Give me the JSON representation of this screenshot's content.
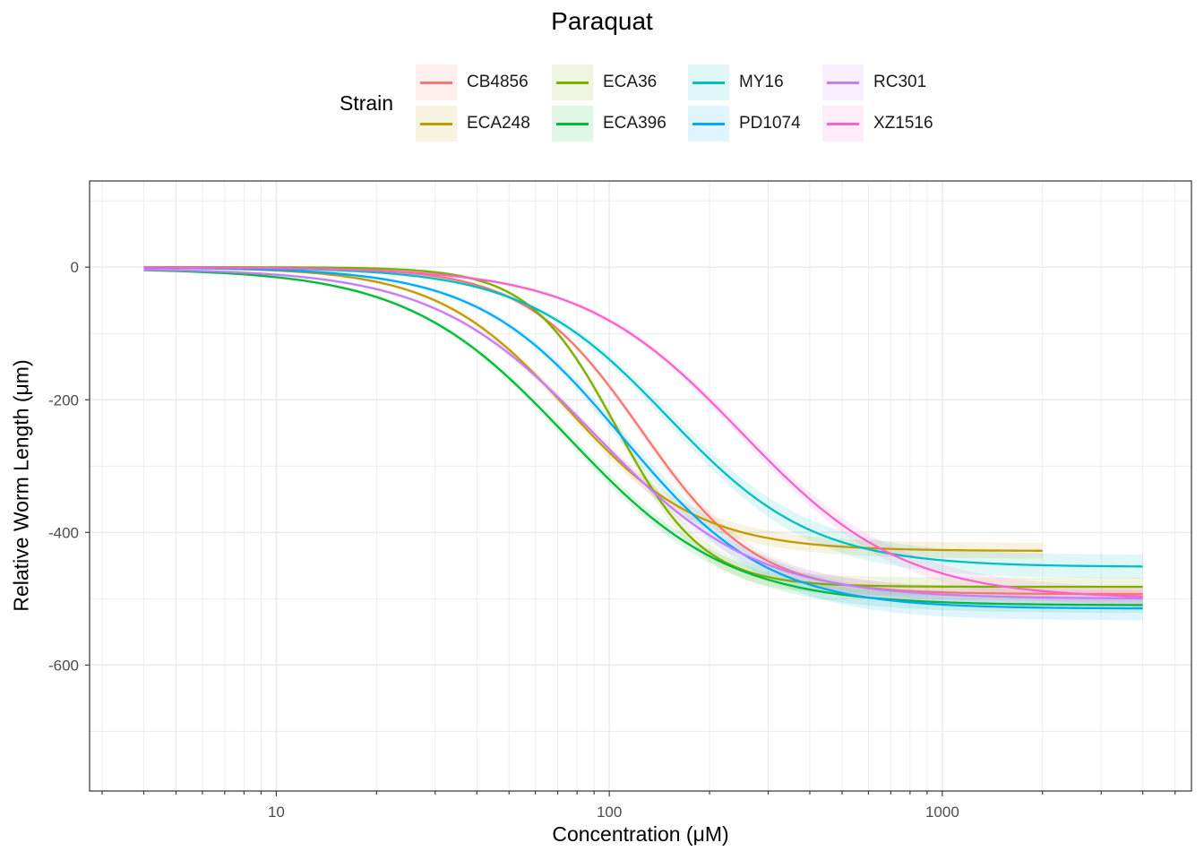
{
  "colors": {
    "CB4856": "#F8766D",
    "ECA248": "#C49A00",
    "ECA36": "#53B400",
    "ECA396": "#00C094",
    "MY16": "#00B6EB",
    "PD1074": "#06A4FF",
    "RC301": "#A58AFF",
    "XZ1516": "#FB61D7"
  },
  "chart_data": {
    "type": "line",
    "title": "Paraquat",
    "xlabel": "Concentration (μM)",
    "ylabel": "Relative Worm Length (μm)",
    "xscale": "log10",
    "xlim": [
      2.75,
      5600
    ],
    "ylim": [
      -790,
      130
    ],
    "x_ticks": [
      10,
      100,
      1000
    ],
    "x_tick_labels": [
      "10",
      "100",
      "1000"
    ],
    "y_ticks": [
      0,
      -200,
      -400,
      -600
    ],
    "y_tick_labels": [
      "0",
      "-200",
      "-400",
      "-600"
    ],
    "legend_title": "Strain",
    "legend_position": "top",
    "grid": true,
    "series": [
      {
        "name": "CB4856",
        "color": "#F8766D",
        "top": 0,
        "bottom": -493,
        "ec50": 125,
        "hill": 2.5,
        "xmin": 4,
        "xmax": 4000,
        "band": 9
      },
      {
        "name": "ECA248",
        "color": "#C49A00",
        "top": 0,
        "bottom": -428,
        "ec50": 75,
        "hill": 2.2,
        "xmin": 4,
        "xmax": 2000,
        "band": 10
      },
      {
        "name": "ECA36",
        "color": "#7CAE00",
        "top": 0,
        "bottom": -482,
        "ec50": 105,
        "hill": 3.3,
        "xmin": 4,
        "xmax": 4000,
        "band": 12
      },
      {
        "name": "ECA396",
        "color": "#00BA38",
        "top": -2,
        "bottom": -510,
        "ec50": 75,
        "hill": 1.8,
        "xmin": 4,
        "xmax": 4000,
        "band": 10
      },
      {
        "name": "MY16",
        "color": "#00BFC4",
        "top": 0,
        "bottom": -452,
        "ec50": 150,
        "hill": 2.0,
        "xmin": 4,
        "xmax": 4000,
        "band": 16
      },
      {
        "name": "PD1074",
        "color": "#00A9FF",
        "top": 0,
        "bottom": -515,
        "ec50": 110,
        "hill": 2.0,
        "xmin": 4,
        "xmax": 4000,
        "band": 16
      },
      {
        "name": "RC301",
        "color": "#C77CFF",
        "top": -2,
        "bottom": -500,
        "ec50": 90,
        "hill": 1.8,
        "xmin": 4,
        "xmax": 4000,
        "band": 10
      },
      {
        "name": "XZ1516",
        "color": "#FF61CC",
        "top": 0,
        "bottom": -500,
        "ec50": 250,
        "hill": 1.8,
        "xmin": 4,
        "xmax": 4000,
        "band": 12
      }
    ]
  }
}
